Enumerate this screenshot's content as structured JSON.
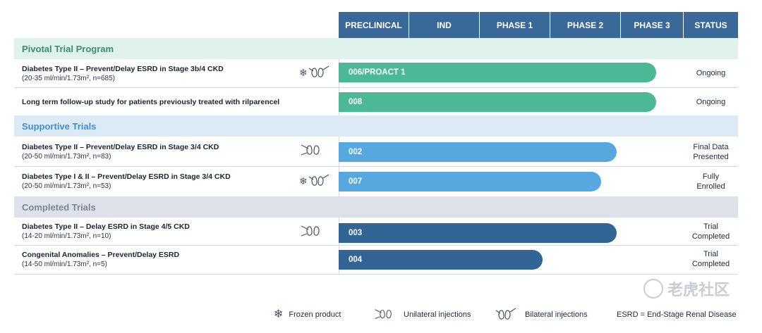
{
  "header": {
    "phases": [
      "PRECLINICAL",
      "IND",
      "PHASE 1",
      "PHASE 2",
      "PHASE 3"
    ],
    "status_label": "STATUS",
    "color": "#3a6898"
  },
  "sections": {
    "pivotal": "Pivotal Trial Program",
    "supportive": "Supportive Trials",
    "completed": "Completed Trials"
  },
  "trials": [
    {
      "title": "Diabetes Type II – Prevent/Delay ESRD in Stage 3b/4 CKD",
      "sub": "(20-35 ml/min/1.73m², n=685)",
      "bar": "006/PROACT 1",
      "status": [
        "Ongoing"
      ],
      "icons": [
        "snowflake-icon",
        "bilateral-injection-icon"
      ]
    },
    {
      "title": "Long term follow-up study for patients previously treated with rilparencel",
      "sub": "",
      "bar": "008",
      "status": [
        "Ongoing"
      ],
      "icons": []
    },
    {
      "title": "Diabetes Type II – Prevent/Delay ESRD in Stage 3/4 CKD",
      "sub": "(20-50 ml/min/1.73m², n=83)",
      "bar": "002",
      "status": [
        "Final Data",
        "Presented"
      ],
      "icons": [
        "unilateral-injection-icon"
      ]
    },
    {
      "title": "Diabetes Type I & II – Prevent/Delay ESRD in Stage 3/4 CKD",
      "sub": "(20-50 ml/min/1.73m², n=53)",
      "bar": "007",
      "status": [
        "Fully",
        "Enrolled"
      ],
      "icons": [
        "snowflake-icon",
        "bilateral-injection-icon"
      ]
    },
    {
      "title": "Diabetes Type II – Delay ESRD in Stage 4/5 CKD",
      "sub": "(14-20 ml/min/1.73m², n=10)",
      "bar": "003",
      "status": [
        "Trial",
        "Completed"
      ],
      "icons": [
        "unilateral-injection-icon"
      ]
    },
    {
      "title": "Congenital Anomalies – Prevent/Delay ESRD",
      "sub": "(14-50 ml/min/1.73m², n=5)",
      "bar": "004",
      "status": [
        "Trial",
        "Completed"
      ],
      "icons": []
    }
  ],
  "legend": {
    "frozen": "Frozen product",
    "unilateral": "Unilateral injections",
    "bilateral": "Bilateral injections",
    "esrd": "ESRD = End-Stage Renal Disease"
  },
  "watermark": "老虎社区",
  "colors": {
    "pivotal_bar": "#4db896",
    "supportive_bar": "#57a8de",
    "completed_bar": "#326595"
  },
  "chart_data": {
    "type": "bar",
    "orientation": "horizontal",
    "x_categories": [
      "PRECLINICAL",
      "IND",
      "PHASE 1",
      "PHASE 2",
      "PHASE 3"
    ],
    "xlim": [
      0,
      5
    ],
    "categories": [
      "006/PROACT 1",
      "008",
      "002",
      "007",
      "003",
      "004"
    ],
    "values": [
      4.6,
      4.6,
      4.03,
      3.8,
      4.03,
      2.96
    ],
    "groups": [
      "Pivotal Trial Program",
      "Pivotal Trial Program",
      "Supportive Trials",
      "Supportive Trials",
      "Completed Trials",
      "Completed Trials"
    ]
  }
}
